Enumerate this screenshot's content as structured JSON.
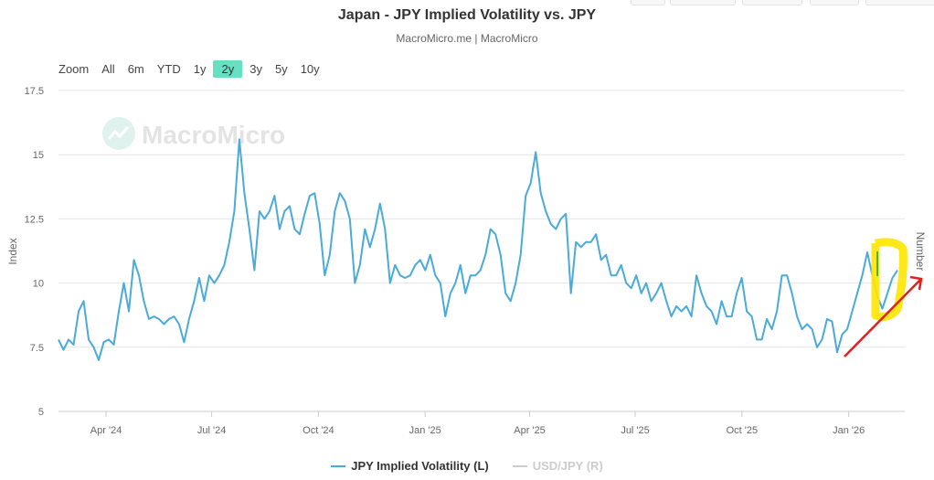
{
  "title": "Japan - JPY Implied Volatility vs. JPY",
  "subtitle": "MacroMicro.me | MacroMicro",
  "watermark": "MacroMicro",
  "range_selector": {
    "label": "Zoom",
    "buttons": [
      "All",
      "6m",
      "YTD",
      "1y",
      "2y",
      "3y",
      "5y",
      "10y"
    ],
    "selected": "2y"
  },
  "colors": {
    "series": "#4aaad8",
    "selected": "#66e0c0",
    "legend_inactive": "#cccccc",
    "highlight": "#ffe600",
    "arrow": "#e02020"
  },
  "chart_data": {
    "type": "line",
    "title": "Japan - JPY Implied Volatility vs. JPY",
    "ylabel": "Index",
    "ylabel_right": "Number",
    "ylim": [
      5,
      17.5
    ],
    "yticks": [
      "5",
      "7.5",
      "10",
      "12.5",
      "15",
      "17.5"
    ],
    "xticks": [
      "Apr '24",
      "Jul '24",
      "Oct '24",
      "Jan '25",
      "Apr '25",
      "Jul '25",
      "Oct '25",
      "Jan '26"
    ],
    "x_range": [
      "2024-02-20",
      "2026-02-12"
    ],
    "grid": true,
    "legend_position": "bottom",
    "series": [
      {
        "name": "JPY Implied Volatility (L)",
        "active": true,
        "values": [
          7.8,
          7.4,
          7.8,
          7.6,
          8.9,
          9.3,
          7.8,
          7.5,
          7.0,
          7.7,
          7.8,
          7.6,
          8.9,
          10.0,
          8.9,
          10.9,
          10.3,
          9.3,
          8.6,
          8.7,
          8.6,
          8.4,
          8.6,
          8.7,
          8.4,
          7.7,
          8.6,
          9.3,
          10.2,
          9.3,
          10.3,
          10.0,
          10.3,
          10.7,
          11.6,
          12.8,
          15.6,
          13.5,
          12.1,
          10.5,
          12.8,
          12.5,
          12.8,
          13.4,
          12.1,
          12.8,
          13.0,
          12.1,
          11.9,
          12.7,
          13.4,
          13.5,
          12.3,
          10.3,
          11.1,
          12.8,
          13.5,
          13.2,
          12.5,
          10.0,
          10.7,
          12.1,
          11.4,
          12.1,
          13.1,
          12.1,
          10.0,
          10.7,
          10.3,
          10.2,
          10.3,
          10.7,
          10.9,
          10.5,
          11.1,
          10.3,
          10.0,
          8.7,
          9.6,
          10.0,
          10.7,
          9.6,
          10.3,
          10.3,
          10.5,
          11.1,
          12.1,
          11.9,
          11.1,
          9.6,
          9.3,
          10.0,
          11.1,
          13.4,
          13.9,
          15.1,
          13.5,
          12.8,
          12.3,
          12.1,
          12.5,
          12.7,
          9.6,
          11.6,
          11.4,
          11.6,
          11.6,
          11.9,
          10.9,
          11.1,
          10.3,
          10.3,
          10.7,
          10.0,
          9.8,
          10.3,
          9.6,
          10.0,
          9.3,
          9.6,
          10.0,
          9.3,
          8.7,
          9.1,
          8.9,
          9.1,
          8.7,
          10.3,
          9.6,
          9.1,
          8.9,
          8.4,
          9.3,
          8.7,
          8.7,
          9.6,
          10.2,
          8.9,
          8.7,
          7.8,
          7.8,
          8.6,
          8.2,
          8.9,
          10.3,
          10.3,
          9.6,
          8.7,
          8.2,
          8.4,
          8.2,
          7.5,
          7.8,
          8.6,
          8.5,
          7.3,
          8.0,
          8.2,
          8.9,
          9.6,
          10.3,
          11.2,
          10.3,
          9.5,
          9.0,
          9.6,
          10.2,
          10.5
        ]
      },
      {
        "name": "USD/JPY (R)",
        "active": false,
        "values": []
      }
    ]
  }
}
